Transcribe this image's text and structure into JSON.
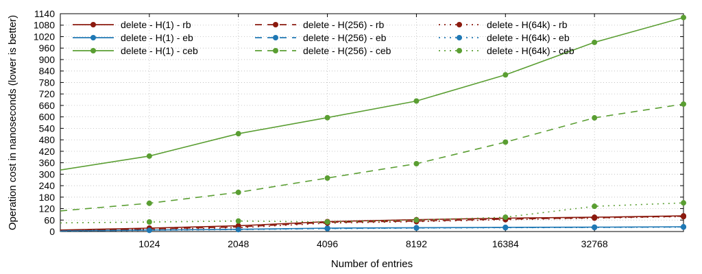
{
  "chart_data": {
    "type": "line",
    "xlabel": "Number of entries",
    "ylabel": "Operation cost in nanoseconds (lower is better)",
    "x": [
      512,
      1024,
      2048,
      4096,
      8192,
      16384,
      32768,
      65536
    ],
    "x_scale": "log2",
    "xlim": [
      512,
      65536
    ],
    "x_ticks": [
      1024,
      2048,
      4096,
      8192,
      16384,
      32768
    ],
    "ylim": [
      0,
      1140
    ],
    "y_ticks": [
      0,
      60,
      120,
      180,
      240,
      300,
      360,
      420,
      480,
      540,
      600,
      660,
      720,
      780,
      840,
      900,
      960,
      1020,
      1080,
      1140
    ],
    "grid": true,
    "legend_position": "top",
    "series": [
      {
        "name": "delete - H(1) - rb",
        "color": "#8b1a0e",
        "dash": "solid",
        "values": [
          8,
          18,
          30,
          52,
          62,
          70,
          75,
          82
        ]
      },
      {
        "name": "delete - H(1) - eb",
        "color": "#1f78b4",
        "dash": "solid",
        "values": [
          4,
          8,
          12,
          18,
          20,
          22,
          23,
          25
        ]
      },
      {
        "name": "delete - H(1) - ceb",
        "color": "#5a9e32",
        "dash": "solid",
        "values": [
          322,
          395,
          512,
          596,
          683,
          820,
          990,
          1120
        ]
      },
      {
        "name": "delete - H(256) - rb",
        "color": "#8b1a0e",
        "dash": "dashed",
        "values": [
          6,
          14,
          24,
          48,
          55,
          65,
          72,
          80
        ]
      },
      {
        "name": "delete - H(256) - eb",
        "color": "#1f78b4",
        "dash": "dashed",
        "values": [
          3,
          7,
          11,
          16,
          19,
          21,
          22,
          24
        ]
      },
      {
        "name": "delete - H(256) - ceb",
        "color": "#5a9e32",
        "dash": "dashed",
        "values": [
          108,
          148,
          205,
          280,
          355,
          468,
          595,
          667
        ]
      },
      {
        "name": "delete - H(64k) - rb",
        "color": "#8b1a0e",
        "dash": "dotted",
        "values": [
          5,
          12,
          20,
          44,
          52,
          62,
          70,
          78
        ]
      },
      {
        "name": "delete - H(64k) - eb",
        "color": "#1f78b4",
        "dash": "dotted",
        "values": [
          2,
          6,
          10,
          15,
          18,
          20,
          21,
          23
        ]
      },
      {
        "name": "delete - H(64k) - ceb",
        "color": "#5a9e32",
        "dash": "dotted",
        "values": [
          45,
          50,
          55,
          50,
          60,
          75,
          132,
          150
        ]
      }
    ]
  }
}
